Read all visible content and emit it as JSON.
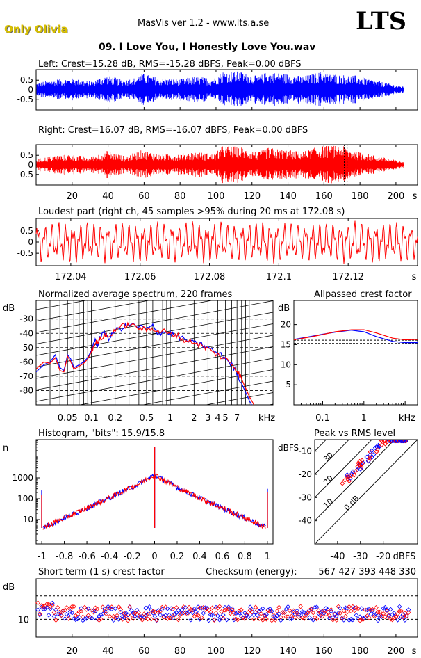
{
  "header": {
    "artist": "Only Olivia",
    "app_title": "MasVis ver 1.2 - www.lts.a.se",
    "logo": "LTS",
    "track": "09. I Love You, I Honestly Love You.wav",
    "artist_color": "#d8c000"
  },
  "colors": {
    "left": "#0000ff",
    "right": "#ff0000",
    "marker": "#000000"
  },
  "chart_data": [
    {
      "type": "line",
      "id": "left-waveform",
      "title": "Left: Crest=15.28 dB, RMS=-15.28 dBFS, Peak=0.00 dBFS",
      "ylim": [
        -1,
        1
      ],
      "y_ticks": [
        "0.5",
        "0",
        "-0.5"
      ],
      "x_ticks": [],
      "envelope": [
        {
          "t": 0,
          "a": 0.35
        },
        {
          "t": 10,
          "a": 0.55
        },
        {
          "t": 20,
          "a": 0.6
        },
        {
          "t": 30,
          "a": 0.45
        },
        {
          "t": 40,
          "a": 0.75
        },
        {
          "t": 50,
          "a": 0.5
        },
        {
          "t": 60,
          "a": 0.85
        },
        {
          "t": 70,
          "a": 0.6
        },
        {
          "t": 80,
          "a": 0.55
        },
        {
          "t": 90,
          "a": 0.7
        },
        {
          "t": 100,
          "a": 0.6
        },
        {
          "t": 105,
          "a": 1.0
        },
        {
          "t": 115,
          "a": 0.95
        },
        {
          "t": 125,
          "a": 0.7
        },
        {
          "t": 130,
          "a": 0.95
        },
        {
          "t": 140,
          "a": 0.85
        },
        {
          "t": 150,
          "a": 0.7
        },
        {
          "t": 160,
          "a": 0.95
        },
        {
          "t": 170,
          "a": 0.8
        },
        {
          "t": 180,
          "a": 0.75
        },
        {
          "t": 190,
          "a": 0.5
        },
        {
          "t": 200,
          "a": 0.3
        },
        {
          "t": 207,
          "a": 0.15
        }
      ]
    },
    {
      "type": "line",
      "id": "right-waveform",
      "title": "Right: Crest=16.07 dB, RMS=-16.07 dBFS, Peak=0.00 dBFS",
      "ylim": [
        -1,
        1
      ],
      "y_ticks": [
        "0.5",
        "0",
        "-0.5"
      ],
      "x_ticks": [
        "20",
        "40",
        "60",
        "80",
        "100",
        "120",
        "140",
        "160",
        "180",
        "200",
        "s"
      ],
      "marker_time": 172.08,
      "envelope": [
        {
          "t": 0,
          "a": 0.3
        },
        {
          "t": 10,
          "a": 0.5
        },
        {
          "t": 20,
          "a": 0.55
        },
        {
          "t": 30,
          "a": 0.4
        },
        {
          "t": 40,
          "a": 0.75
        },
        {
          "t": 50,
          "a": 0.45
        },
        {
          "t": 60,
          "a": 0.8
        },
        {
          "t": 70,
          "a": 0.55
        },
        {
          "t": 80,
          "a": 0.6
        },
        {
          "t": 90,
          "a": 0.7
        },
        {
          "t": 100,
          "a": 0.55
        },
        {
          "t": 105,
          "a": 1.0
        },
        {
          "t": 115,
          "a": 0.95
        },
        {
          "t": 125,
          "a": 0.65
        },
        {
          "t": 130,
          "a": 0.9
        },
        {
          "t": 140,
          "a": 0.8
        },
        {
          "t": 150,
          "a": 0.7
        },
        {
          "t": 160,
          "a": 1.0
        },
        {
          "t": 172,
          "a": 1.0
        },
        {
          "t": 180,
          "a": 0.7
        },
        {
          "t": 190,
          "a": 0.5
        },
        {
          "t": 200,
          "a": 0.3
        },
        {
          "t": 207,
          "a": 0.15
        }
      ]
    },
    {
      "type": "line",
      "id": "loudest-part",
      "title": "Loudest part (right ch, 45 samples >95% during 20 ms at 172.08 s)",
      "xlim": [
        172.03,
        172.14
      ],
      "ylim": [
        -1,
        1
      ],
      "y_ticks": [
        "0.5",
        "0",
        "-0.5"
      ],
      "x_ticks": [
        "172.04",
        "172.06",
        "172.08",
        "172.1",
        "172.12",
        "s"
      ],
      "x_tick_values": [
        172.04,
        172.06,
        172.08,
        172.1,
        172.12
      ]
    },
    {
      "type": "line",
      "id": "spectrum",
      "title": "Normalized average spectrum, 220 frames",
      "ylabel": "dB",
      "xlabel": "kHz",
      "y_ticks": [
        "-30",
        "-40",
        "-50",
        "-60",
        "-70",
        "-80"
      ],
      "y_tick_values": [
        -30,
        -40,
        -50,
        -60,
        -70,
        -80
      ],
      "ylim": [
        -90,
        -17
      ],
      "xlim_khz": [
        0.02,
        20
      ],
      "x_ticks": [
        "0.05",
        "0.1",
        "0.2",
        "0.5",
        "1",
        "2",
        "3",
        "4",
        "5",
        "7",
        "kHz"
      ],
      "x_tick_values": [
        0.05,
        0.1,
        0.2,
        0.5,
        1,
        2,
        3,
        4,
        5,
        7
      ],
      "series": [
        {
          "name": "left",
          "points": [
            [
              0.02,
              -67
            ],
            [
              0.025,
              -62
            ],
            [
              0.03,
              -60
            ],
            [
              0.035,
              -55
            ],
            [
              0.04,
              -64
            ],
            [
              0.045,
              -66
            ],
            [
              0.05,
              -55
            ],
            [
              0.055,
              -58
            ],
            [
              0.06,
              -64
            ],
            [
              0.07,
              -62
            ],
            [
              0.08,
              -60
            ],
            [
              0.09,
              -57
            ],
            [
              0.1,
              -52
            ],
            [
              0.11,
              -45
            ],
            [
              0.12,
              -48
            ],
            [
              0.13,
              -42
            ],
            [
              0.15,
              -40
            ],
            [
              0.17,
              -44
            ],
            [
              0.2,
              -38
            ],
            [
              0.25,
              -36
            ],
            [
              0.3,
              -34
            ],
            [
              0.4,
              -35
            ],
            [
              0.5,
              -37
            ],
            [
              0.6,
              -35
            ],
            [
              0.7,
              -40
            ],
            [
              0.8,
              -39
            ],
            [
              1,
              -40
            ],
            [
              1.2,
              -42
            ],
            [
              1.5,
              -44
            ],
            [
              2,
              -47
            ],
            [
              2.5,
              -48
            ],
            [
              3,
              -50
            ],
            [
              4,
              -54
            ],
            [
              5,
              -57
            ],
            [
              6,
              -62
            ],
            [
              7,
              -68
            ],
            [
              8,
              -75
            ],
            [
              10,
              -87
            ],
            [
              12,
              -95
            ]
          ]
        },
        {
          "name": "right",
          "points": [
            [
              0.02,
              -65
            ],
            [
              0.025,
              -60
            ],
            [
              0.03,
              -61
            ],
            [
              0.035,
              -57
            ],
            [
              0.04,
              -66
            ],
            [
              0.045,
              -67
            ],
            [
              0.05,
              -56
            ],
            [
              0.055,
              -60
            ],
            [
              0.06,
              -65
            ],
            [
              0.07,
              -63
            ],
            [
              0.08,
              -61
            ],
            [
              0.09,
              -58
            ],
            [
              0.1,
              -53
            ],
            [
              0.11,
              -47
            ],
            [
              0.12,
              -46
            ],
            [
              0.13,
              -44
            ],
            [
              0.15,
              -41
            ],
            [
              0.17,
              -43
            ],
            [
              0.2,
              -37
            ],
            [
              0.25,
              -35
            ],
            [
              0.3,
              -34
            ],
            [
              0.4,
              -36
            ],
            [
              0.5,
              -38
            ],
            [
              0.6,
              -36
            ],
            [
              0.7,
              -39
            ],
            [
              0.8,
              -38
            ],
            [
              1,
              -41
            ],
            [
              1.2,
              -41
            ],
            [
              1.5,
              -45
            ],
            [
              2,
              -46
            ],
            [
              2.5,
              -49
            ],
            [
              3,
              -51
            ],
            [
              4,
              -55
            ],
            [
              5,
              -58
            ],
            [
              6,
              -61
            ],
            [
              7,
              -66
            ],
            [
              8,
              -72
            ],
            [
              10,
              -84
            ],
            [
              12,
              -92
            ]
          ]
        }
      ]
    },
    {
      "type": "line",
      "id": "allpassed-crest",
      "title": "Allpassed crest factor",
      "ylabel": "dB",
      "xlabel": "kHz",
      "ylim": [
        0,
        26
      ],
      "y_ticks": [
        "20",
        "15",
        "10",
        "5"
      ],
      "y_tick_values": [
        20,
        15,
        10,
        5
      ],
      "x_ticks": [
        "0.1",
        "1",
        "kHz"
      ],
      "x_tick_values": [
        0.1,
        1
      ],
      "xlim_khz": [
        0.02,
        20
      ],
      "dashed_levels": [
        15.3,
        16.1
      ],
      "series": [
        {
          "name": "left",
          "points": [
            [
              0.02,
              16.3
            ],
            [
              0.05,
              17.0
            ],
            [
              0.1,
              17.6
            ],
            [
              0.2,
              18.1
            ],
            [
              0.5,
              18.6
            ],
            [
              1,
              18.2
            ],
            [
              2,
              17.0
            ],
            [
              5,
              15.8
            ],
            [
              10,
              15.5
            ],
            [
              20,
              15.5
            ]
          ]
        },
        {
          "name": "right",
          "points": [
            [
              0.02,
              16.2
            ],
            [
              0.05,
              16.9
            ],
            [
              0.1,
              17.5
            ],
            [
              0.2,
              18.2
            ],
            [
              0.5,
              18.7
            ],
            [
              1,
              18.7
            ],
            [
              2,
              17.9
            ],
            [
              5,
              16.6
            ],
            [
              10,
              16.2
            ],
            [
              20,
              16.3
            ]
          ]
        }
      ]
    },
    {
      "type": "line",
      "id": "histogram",
      "title": "Histogram, \"bits\": 15.9/15.8",
      "ylabel": "n",
      "y_scale": "log",
      "ylim": [
        1,
        100000
      ],
      "y_ticks": [
        "1000",
        "100",
        "10"
      ],
      "y_tick_values": [
        1000,
        100,
        10
      ],
      "xlim": [
        -1.05,
        1.05
      ],
      "x_ticks": [
        "-1",
        "-0.8",
        "-0.6",
        "-0.4",
        "-0.2",
        "0",
        "0.2",
        "0.4",
        "0.6",
        "0.8",
        "1"
      ],
      "x_tick_values": [
        -1,
        -0.8,
        -0.6,
        -0.4,
        -0.2,
        0,
        0.2,
        0.4,
        0.6,
        0.8,
        1
      ]
    },
    {
      "type": "scatter",
      "id": "peak-vs-rms",
      "title": "Peak vs RMS level",
      "ylabel": "dBFS",
      "xlabel": "dBFS",
      "xlim": [
        -50,
        -5
      ],
      "ylim": [
        -50,
        -5
      ],
      "x_ticks": [
        "-40",
        "-30",
        "-20",
        "dBFS"
      ],
      "x_tick_values": [
        -40,
        -30,
        -20
      ],
      "y_ticks": [
        "-10",
        "-20",
        "-30",
        "-40"
      ],
      "y_tick_values": [
        -10,
        -20,
        -30,
        -40
      ],
      "crest_lines": [
        "0 dB",
        "10",
        "20",
        "30",
        "40"
      ],
      "crest_line_values": [
        0,
        10,
        20,
        30,
        40
      ]
    },
    {
      "type": "scatter",
      "id": "short-term-crest",
      "title": "Short term (1 s) crest factor",
      "checksum_label": "Checksum (energy):",
      "checksum_value": "567 427 393 448 330",
      "ylabel": "dB",
      "ylim": [
        0,
        25
      ],
      "y_ticks": [
        "10"
      ],
      "y_tick_values": [
        10
      ],
      "dashed_levels": [
        10,
        20
      ],
      "xlim": [
        0,
        212
      ],
      "x_ticks": [
        "20",
        "40",
        "60",
        "80",
        "100",
        "120",
        "140",
        "160",
        "180",
        "200",
        "s"
      ],
      "x_tick_values": [
        20,
        40,
        60,
        80,
        100,
        120,
        140,
        160,
        180,
        200
      ]
    }
  ]
}
